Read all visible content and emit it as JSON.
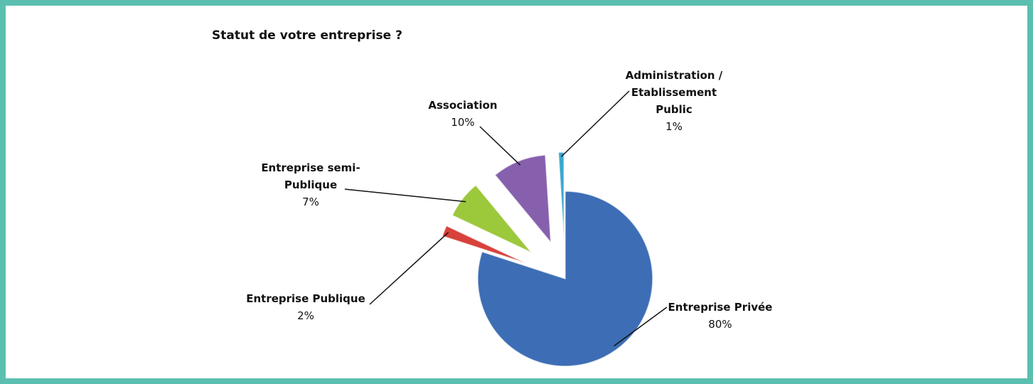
{
  "chart_data": {
    "type": "pie",
    "title": "Statut de votre entreprise ?",
    "categories": [
      "Entreprise Privée",
      "Entreprise Publique",
      "Entreprise semi-Publique",
      "Association",
      "Administration / Etablissement Public"
    ],
    "values": [
      80,
      2,
      7,
      10,
      1
    ],
    "value_labels": [
      "80%",
      "2%",
      "7%",
      "10%",
      "1%"
    ],
    "colors": [
      "#3d6db5",
      "#d8413b",
      "#9cc83c",
      "#8660ad",
      "#3aa6cf"
    ]
  }
}
